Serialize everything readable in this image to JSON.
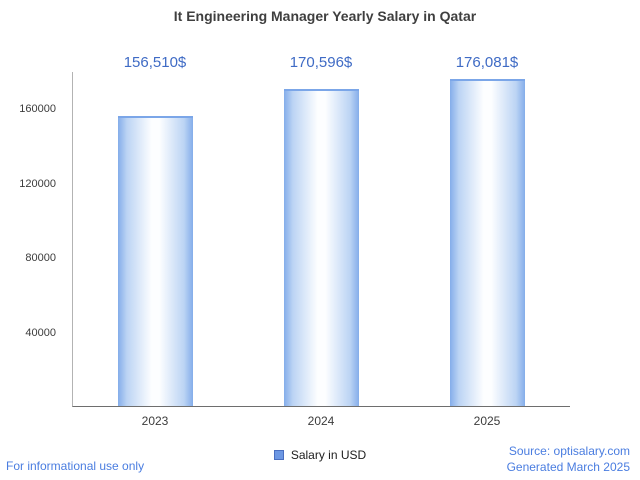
{
  "chart_data": {
    "type": "bar",
    "title": "It Engineering Manager Yearly Salary in Qatar",
    "categories": [
      "2023",
      "2024",
      "2025"
    ],
    "series": [
      {
        "name": "Salary in USD",
        "values": [
          156510,
          170596,
          176081
        ]
      }
    ],
    "value_labels": [
      "156,510$",
      "170,596$",
      "176,081$"
    ],
    "xlabel": "",
    "ylabel": "",
    "ylim": [
      0,
      180000
    ],
    "yticks": [
      40000,
      80000,
      120000,
      160000
    ],
    "ytick_labels": [
      "40000",
      "80000",
      "120000",
      "160000"
    ],
    "grid": false,
    "legend_position": "bottom"
  },
  "colors": {
    "bar_edge": "#84adea",
    "bar_center": "#fdfeff",
    "bar_top_line": "#7ba6e8",
    "value_label": "#3f6bc5",
    "legend_swatch": "#6c97e3",
    "footer_link": "#4a7de0",
    "title_text": "#3f3f3f"
  },
  "footer": {
    "disclaimer": "For informational use only",
    "source": "Source: optisalary.com",
    "generated": "Generated March 2025"
  }
}
